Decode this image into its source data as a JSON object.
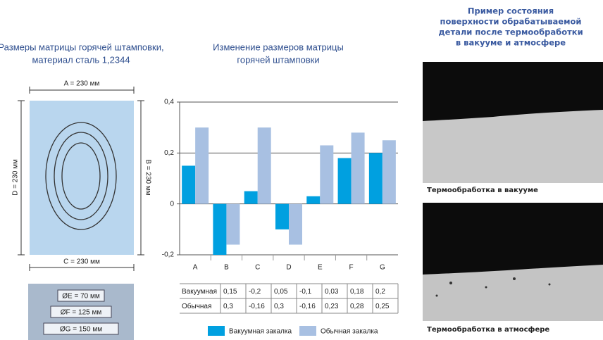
{
  "left": {
    "title": [
      "Размеры матрицы горячей штамповки,",
      "материал сталь 1,2344"
    ],
    "dims": {
      "a": "A = 230 мм",
      "b": "B = 230 мм",
      "c": "C = 230 мм",
      "d": "D = 230 мм"
    },
    "diameters": [
      "ØE = 70 мм",
      "ØF = 125 мм",
      "ØG = 150 мм"
    ]
  },
  "chart_data": {
    "type": "bar",
    "title": [
      "Изменение размеров матрицы",
      "горячей штамповки"
    ],
    "categories": [
      "A",
      "B",
      "C",
      "D",
      "E",
      "F",
      "G"
    ],
    "series": [
      {
        "name": "Вакуумная закалка",
        "row_label": "Вакуумная",
        "color": "#00a0e0",
        "values": [
          0.15,
          -0.2,
          0.05,
          -0.1,
          0.03,
          0.18,
          0.2
        ],
        "value_labels": [
          "0,15",
          "-0,2",
          "0,05",
          "-0,1",
          "0,03",
          "0,18",
          "0,2"
        ]
      },
      {
        "name": "Обычная закалка",
        "row_label": "Обычная",
        "color": "#a8c0e2",
        "values": [
          0.3,
          -0.16,
          0.3,
          -0.16,
          0.23,
          0.28,
          0.25
        ],
        "value_labels": [
          "0,3",
          "-0,16",
          "0,3",
          "-0,16",
          "0,23",
          "0,28",
          "0,25"
        ]
      }
    ],
    "ylim": [
      -0.2,
      0.4
    ],
    "yticks": [
      {
        "value": -0.2,
        "label": "-0,2"
      },
      0,
      {
        "value": 0.2,
        "label": "0,2"
      },
      {
        "value": 0.4,
        "label": "0,4"
      }
    ],
    "grid": true
  },
  "right": {
    "title": [
      "Пример состояния",
      "поверхности обрабатываемой",
      "детали после термообработки",
      "в вакууме и атмосфере"
    ],
    "captions": [
      "Термообработка в вакууме",
      "Термообработка в атмосфере"
    ]
  }
}
